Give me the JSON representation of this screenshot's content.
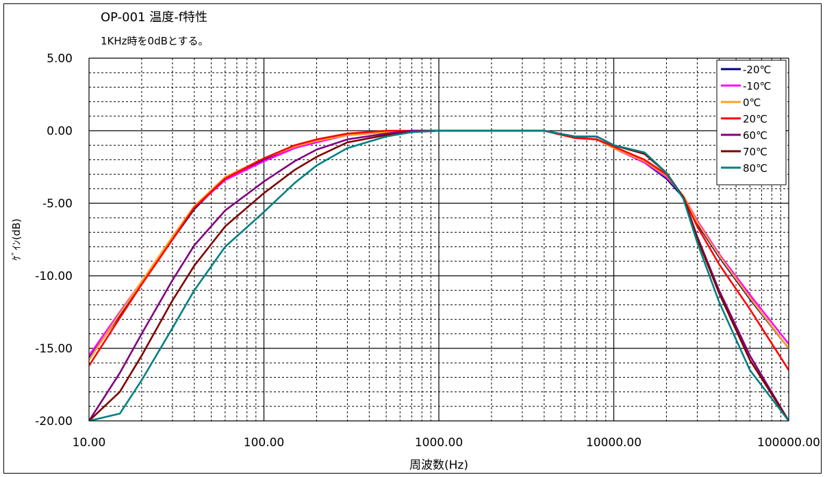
{
  "chart_data": {
    "type": "line",
    "title": "OP-001 温度-f特性",
    "subtitle": "1KHz時を0dBとする。",
    "xlabel": "周波数(Hz)",
    "ylabel": "ｹﾞｲﾝ(dB)",
    "x_scale": "log",
    "xlim": [
      10,
      100000
    ],
    "ylim": [
      -20,
      5
    ],
    "x_ticks": [
      10,
      100,
      1000,
      10000,
      100000
    ],
    "x_tick_labels": [
      "10.00",
      "100.00",
      "1000.00",
      "10000.00",
      "100000.00"
    ],
    "y_ticks": [
      5,
      0,
      -5,
      -10,
      -15,
      -20
    ],
    "y_tick_labels": [
      "5.00",
      "0.00",
      "-5.00",
      "-10.00",
      "-15.00",
      "-20.00"
    ],
    "grid": true,
    "legend_position": "top-right",
    "x": [
      10,
      15,
      20,
      30,
      40,
      60,
      100,
      150,
      200,
      300,
      500,
      700,
      1000,
      2000,
      4000,
      6000,
      8000,
      10000,
      15000,
      20000,
      25000,
      30000,
      40000,
      60000,
      100000
    ],
    "series": [
      {
        "name": "-20℃",
        "color": "#000080",
        "values": [
          -15.7,
          -12.7,
          -10.5,
          -7.5,
          -5.4,
          -3.3,
          -2.0,
          -1.2,
          -0.7,
          -0.3,
          -0.1,
          0.0,
          0.0,
          0.0,
          0.0,
          -0.5,
          -0.6,
          -1.2,
          -2.2,
          -3.3,
          -4.6,
          -6.4,
          -8.7,
          -11.6,
          -15.0
        ]
      },
      {
        "name": "-10℃",
        "color": "#ff00ff",
        "values": [
          -15.5,
          -12.5,
          -10.4,
          -7.4,
          -5.3,
          -3.4,
          -2.1,
          -1.2,
          -0.8,
          -0.3,
          -0.1,
          0.0,
          0.0,
          0.0,
          0.0,
          -0.5,
          -0.6,
          -1.2,
          -2.2,
          -3.2,
          -4.5,
          -6.2,
          -8.5,
          -11.3,
          -14.7
        ]
      },
      {
        "name": "0℃",
        "color": "#ffa020",
        "values": [
          -15.8,
          -12.6,
          -10.4,
          -7.3,
          -5.2,
          -3.2,
          -1.9,
          -1.1,
          -0.7,
          -0.3,
          -0.1,
          0.0,
          0.0,
          0.0,
          0.0,
          -0.5,
          -0.6,
          -1.2,
          -2.1,
          -3.1,
          -4.5,
          -6.3,
          -8.6,
          -11.5,
          -15.0
        ]
      },
      {
        "name": "20℃",
        "color": "#ff0000",
        "values": [
          -16.2,
          -12.9,
          -10.6,
          -7.5,
          -5.3,
          -3.3,
          -1.9,
          -1.0,
          -0.6,
          -0.2,
          0.0,
          0.0,
          0.0,
          0.0,
          0.0,
          -0.5,
          -0.6,
          -1.1,
          -2.0,
          -3.0,
          -4.6,
          -6.6,
          -9.2,
          -12.3,
          -16.5
        ]
      },
      {
        "name": "60℃",
        "color": "#800080",
        "values": [
          -20.0,
          -16.7,
          -14.0,
          -10.3,
          -7.9,
          -5.5,
          -3.5,
          -2.1,
          -1.3,
          -0.6,
          -0.2,
          0.0,
          0.0,
          0.0,
          0.0,
          -0.4,
          -0.4,
          -1.0,
          -1.6,
          -2.9,
          -4.6,
          -7.3,
          -11.0,
          -15.5,
          -20.0
        ]
      },
      {
        "name": "70℃",
        "color": "#800000",
        "values": [
          -20.0,
          -18.0,
          -15.5,
          -11.7,
          -9.3,
          -6.6,
          -4.3,
          -2.7,
          -1.8,
          -0.8,
          -0.3,
          -0.1,
          0.0,
          0.0,
          0.0,
          -0.4,
          -0.4,
          -1.0,
          -1.6,
          -2.9,
          -4.6,
          -7.4,
          -11.2,
          -15.8,
          -20.0
        ]
      },
      {
        "name": "80℃",
        "color": "#008080",
        "values": [
          -20.0,
          -19.5,
          -17.2,
          -13.6,
          -11.0,
          -8.0,
          -5.6,
          -3.6,
          -2.4,
          -1.2,
          -0.4,
          -0.1,
          0.0,
          0.0,
          0.0,
          -0.4,
          -0.4,
          -1.0,
          -1.5,
          -2.9,
          -4.7,
          -7.7,
          -11.8,
          -16.5,
          -20.0
        ]
      }
    ]
  }
}
